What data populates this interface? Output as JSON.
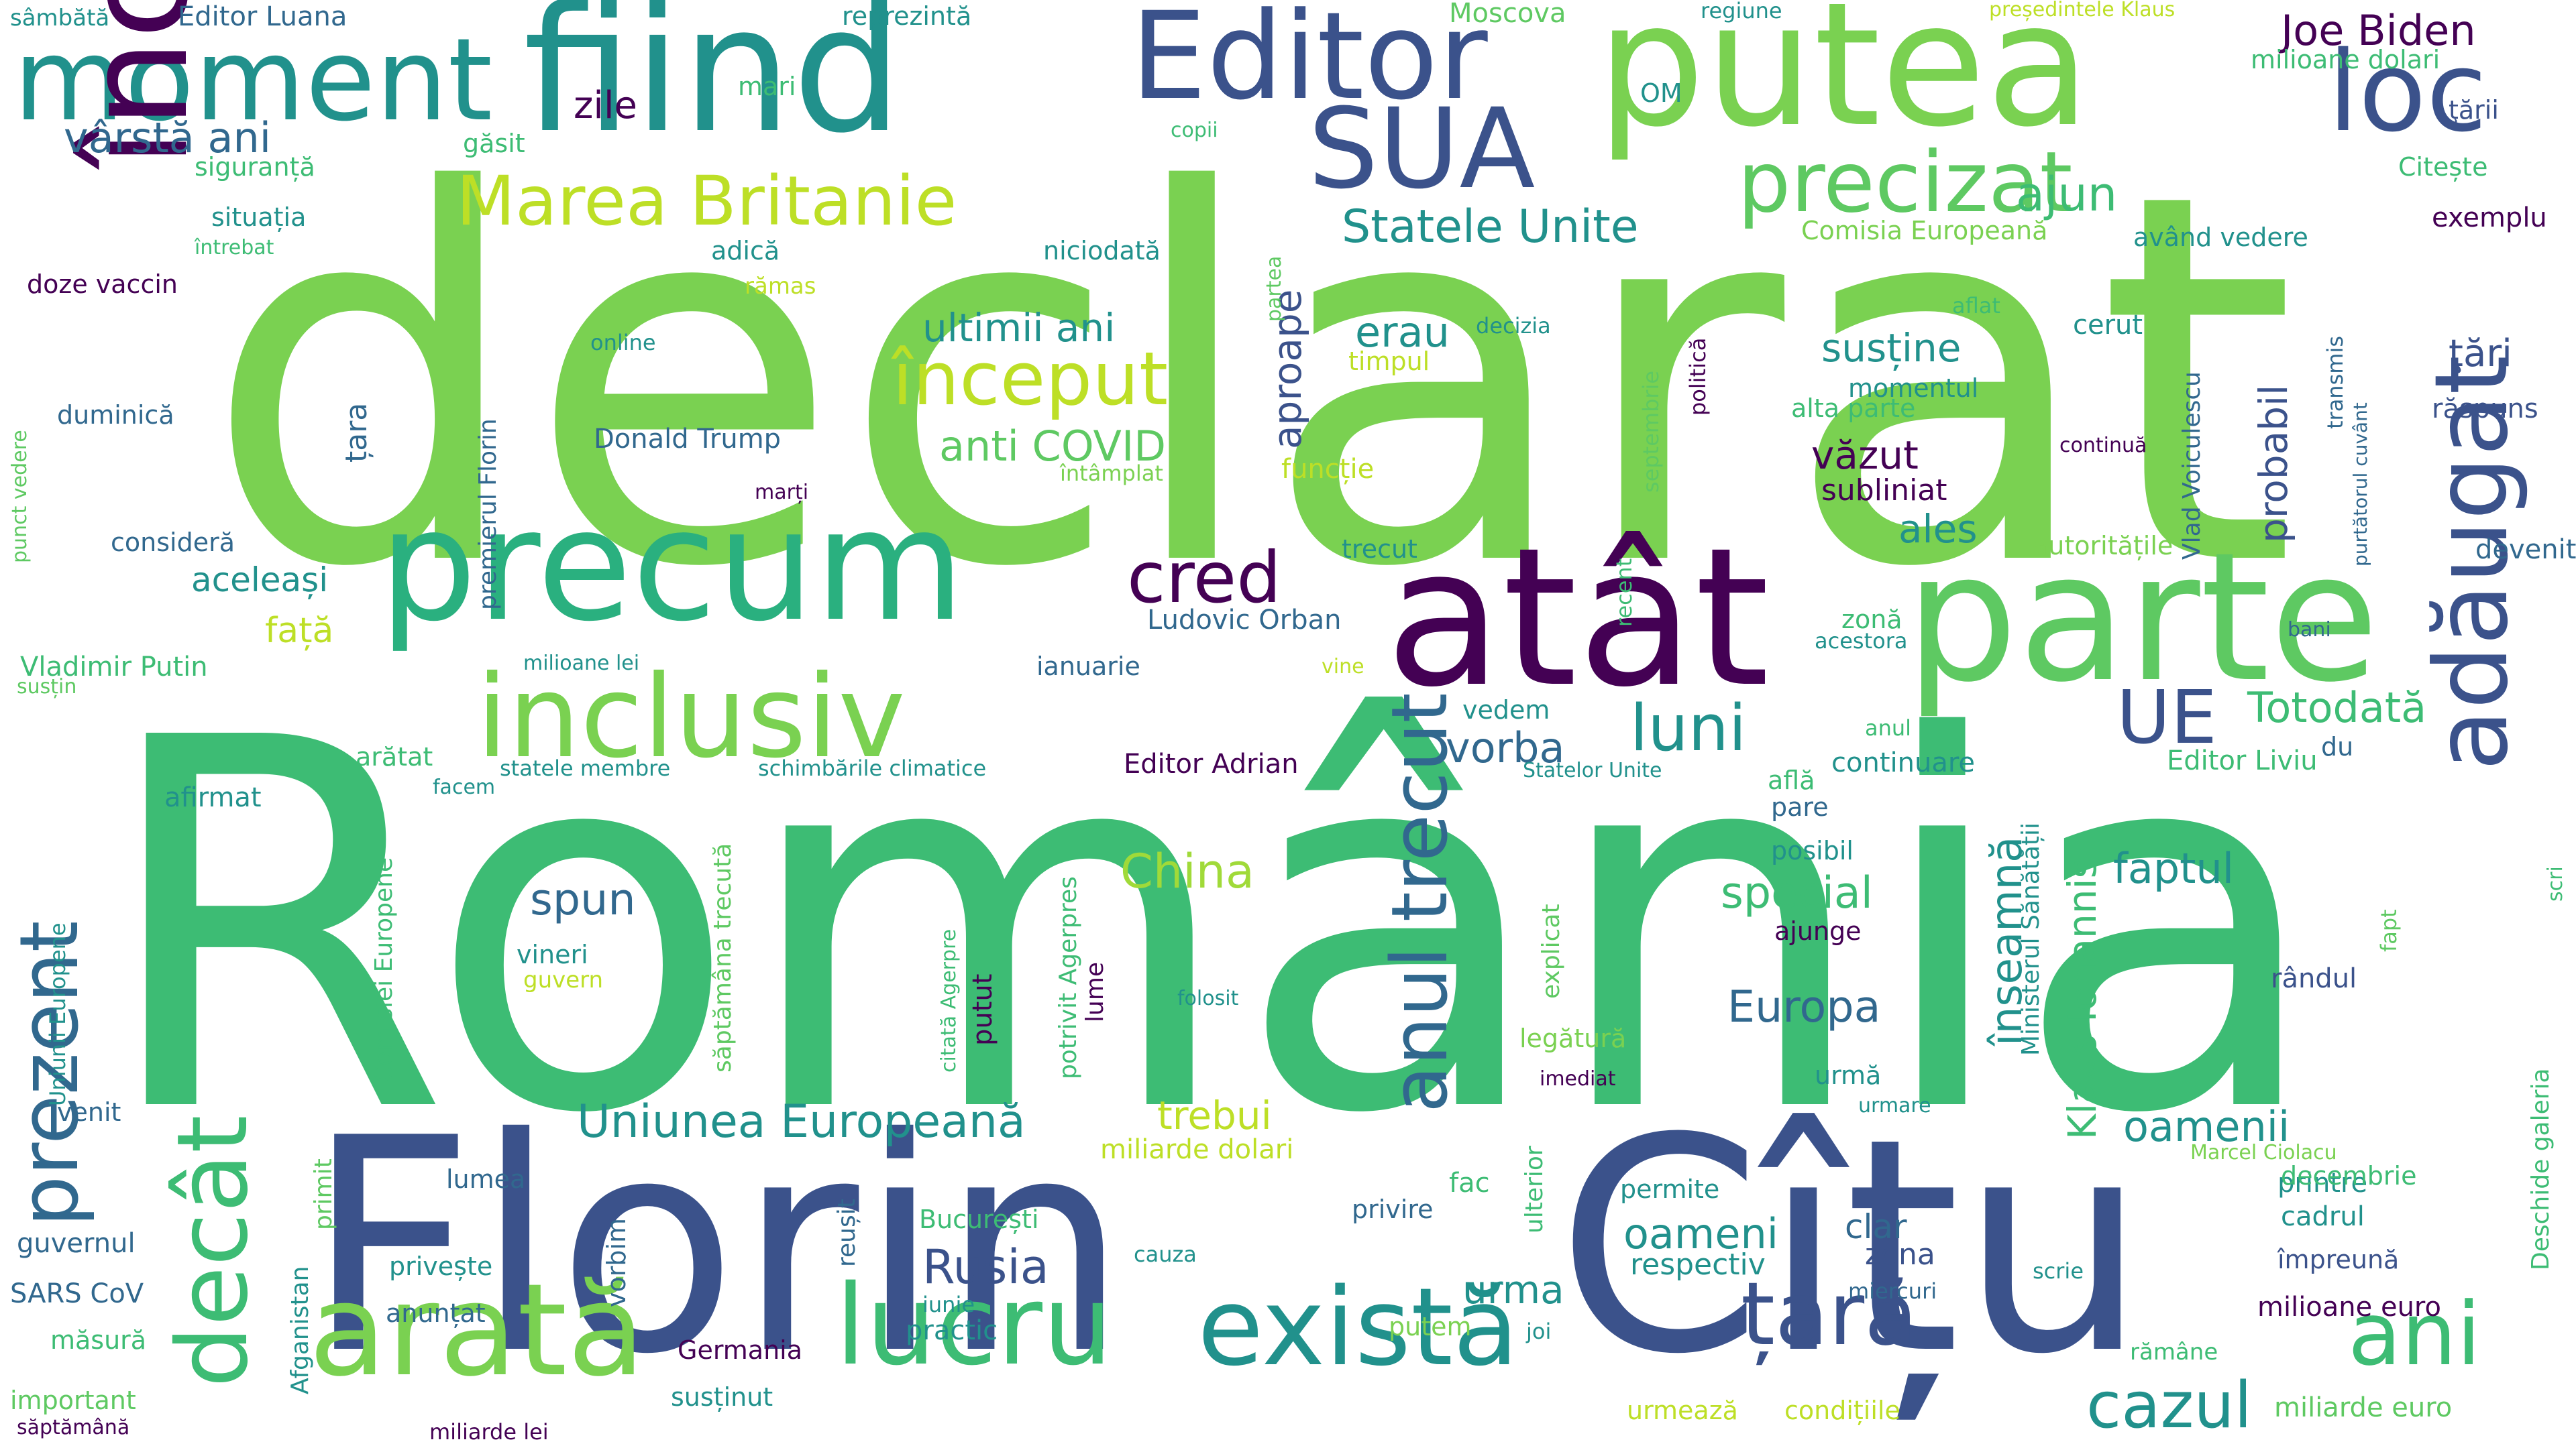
{
  "palette": {
    "background": "#ffffff",
    "dark_purple": "#440154",
    "indigo": "#3b528b",
    "teal": "#21918c",
    "green": "#3dbc74",
    "light_green": "#7ad151",
    "yellow": "#bddf26"
  },
  "words": [
    {
      "text": "declarat",
      "color": "#7ad151"
    },
    {
      "text": "România",
      "color": "#3dbc74"
    },
    {
      "text": "Florin",
      "color": "#3b528b"
    },
    {
      "text": "Cîțu",
      "color": "#3b528b"
    },
    {
      "text": "parte",
      "color": "#5ec962"
    },
    {
      "text": "atât",
      "color": "#440154"
    },
    {
      "text": "putea",
      "color": "#7ad151"
    },
    {
      "text": "fiind",
      "color": "#21918c"
    },
    {
      "text": "Editor",
      "color": "#3b528b"
    },
    {
      "text": "moment",
      "color": "#21918c"
    },
    {
      "text": "încă",
      "color": "#440154"
    },
    {
      "text": "precum",
      "color": "#2ab07f"
    },
    {
      "text": "inclusiv",
      "color": "#7ad151"
    },
    {
      "text": "loc",
      "color": "#3b528b"
    },
    {
      "text": "SUA",
      "color": "#3b528b"
    },
    {
      "text": "precizat",
      "color": "#5ec962"
    },
    {
      "text": "adăugat",
      "color": "#3b528b"
    },
    {
      "text": "arată",
      "color": "#7ad151"
    },
    {
      "text": "există",
      "color": "#21918c"
    },
    {
      "text": "lucru",
      "color": "#3dbc74"
    },
    {
      "text": "țară",
      "color": "#3b528b"
    },
    {
      "text": "ani",
      "color": "#3dbc74"
    },
    {
      "text": "decât",
      "color": "#3dbc74"
    },
    {
      "text": "prezent",
      "color": "#31688e"
    },
    {
      "text": "Marea Britanie",
      "color": "#bddf26"
    },
    {
      "text": "cred",
      "color": "#440154"
    },
    {
      "text": "anul trecut",
      "color": "#31688e"
    },
    {
      "text": "început",
      "color": "#bddf26"
    },
    {
      "text": "UE",
      "color": "#3b528b"
    },
    {
      "text": "luni",
      "color": "#21918c"
    },
    {
      "text": "cazul",
      "color": "#21918c"
    },
    {
      "text": "Uniunea Europeană",
      "color": "#21918c"
    },
    {
      "text": "Statele Unite",
      "color": "#21918c"
    },
    {
      "text": "vârstă ani",
      "color": "#31688e"
    },
    {
      "text": "Joe Biden",
      "color": "#440154"
    },
    {
      "text": "Totodată",
      "color": "#3dbc74"
    },
    {
      "text": "ajun",
      "color": "#3dbc74"
    },
    {
      "text": "spun",
      "color": "#31688e"
    },
    {
      "text": "China",
      "color": "#a0da39"
    },
    {
      "text": "Rusia",
      "color": "#3b528b"
    },
    {
      "text": "Europa",
      "color": "#31688e"
    },
    {
      "text": "special",
      "color": "#3dbc74"
    },
    {
      "text": "înseamnă",
      "color": "#21918c"
    },
    {
      "text": "oamenii",
      "color": "#21918c"
    },
    {
      "text": "oameni",
      "color": "#21918c"
    },
    {
      "text": "faptul",
      "color": "#21918c"
    },
    {
      "text": "anti COVID",
      "color": "#5ec962"
    },
    {
      "text": "erau",
      "color": "#21918c"
    },
    {
      "text": "vorba",
      "color": "#31688e"
    },
    {
      "text": "ultimii ani",
      "color": "#21918c"
    },
    {
      "text": "susține",
      "color": "#21918c"
    },
    {
      "text": "aproape",
      "color": "#3b528b"
    },
    {
      "text": "probabil",
      "color": "#3b528b"
    },
    {
      "text": "ales",
      "color": "#21918c"
    },
    {
      "text": "văzut",
      "color": "#440154"
    },
    {
      "text": "subliniat",
      "color": "#440154"
    },
    {
      "text": "Klaus Iohannis",
      "color": "#3dbc74"
    },
    {
      "text": "trebui",
      "color": "#bddf26"
    },
    {
      "text": "urma",
      "color": "#21918c"
    },
    {
      "text": "clar",
      "color": "#31688e"
    },
    {
      "text": "zona",
      "color": "#3b528b"
    },
    {
      "text": "respectiv",
      "color": "#21918c"
    },
    {
      "text": "aceleași",
      "color": "#21918c"
    },
    {
      "text": "față",
      "color": "#bddf26"
    },
    {
      "text": "ţări",
      "color": "#3b528b"
    },
    {
      "text": "exemplu",
      "color": "#440154"
    },
    {
      "text": "devenit",
      "color": "#31688e"
    },
    {
      "text": "cerut",
      "color": "#21918c"
    },
    {
      "text": "răspuns",
      "color": "#3b528b"
    },
    {
      "text": "Ludovic Orban",
      "color": "#31688e"
    },
    {
      "text": "Editor Adrian",
      "color": "#440154"
    },
    {
      "text": "Editor Liviu",
      "color": "#3dbc74"
    },
    {
      "text": "continuare",
      "color": "#21918c"
    },
    {
      "text": "Donald Trump",
      "color": "#31688e"
    },
    {
      "text": "zile",
      "color": "#440154"
    },
    {
      "text": "sâmbătă",
      "color": "#21918c"
    },
    {
      "text": "Editor Luana",
      "color": "#31688e"
    },
    {
      "text": "reprezintă",
      "color": "#21918c"
    },
    {
      "text": "Moscova",
      "color": "#5ec962"
    },
    {
      "text": "regiune",
      "color": "#21918c"
    },
    {
      "text": "președintele Klaus",
      "color": "#bddf26"
    },
    {
      "text": "milioane dolari",
      "color": "#3dbc74"
    },
    {
      "text": "ţării",
      "color": "#3b528b"
    },
    {
      "text": "Citește",
      "color": "#3dbc74"
    },
    {
      "text": "Comisia Europeană",
      "color": "#7ad151"
    },
    {
      "text": "având vedere",
      "color": "#21918c"
    },
    {
      "text": "siguranță",
      "color": "#3dbc74"
    },
    {
      "text": "situația",
      "color": "#21918c"
    },
    {
      "text": "întrebat",
      "color": "#3dbc74"
    },
    {
      "text": "doze vaccin",
      "color": "#440154"
    },
    {
      "text": "duminică",
      "color": "#31688e"
    },
    {
      "text": "găsit",
      "color": "#3dbc74"
    },
    {
      "text": "mari",
      "color": "#3dbc74"
    },
    {
      "text": "OM",
      "color": "#21918c"
    },
    {
      "text": "copii",
      "color": "#3dbc74"
    },
    {
      "text": "adică",
      "color": "#21918c"
    },
    {
      "text": "niciodată",
      "color": "#21918c"
    },
    {
      "text": "rămas",
      "color": "#bddf26"
    },
    {
      "text": "online",
      "color": "#21918c"
    },
    {
      "text": "timpul",
      "color": "#bddf26"
    },
    {
      "text": "decizia",
      "color": "#21918c"
    },
    {
      "text": "aflat",
      "color": "#3dbc74"
    },
    {
      "text": "alta parte",
      "color": "#3dbc74"
    },
    {
      "text": "momentul",
      "color": "#21918c"
    },
    {
      "text": "continuă",
      "color": "#440154"
    },
    {
      "text": "funcție",
      "color": "#bddf26"
    },
    {
      "text": "întâmplat",
      "color": "#7ad151"
    },
    {
      "text": "marți",
      "color": "#440154"
    },
    {
      "text": "consideră",
      "color": "#31688e"
    },
    {
      "text": "trecut",
      "color": "#21918c"
    },
    {
      "text": "autoritățile",
      "color": "#7ad151"
    },
    {
      "text": "Vladimir Putin",
      "color": "#3dbc74"
    },
    {
      "text": "milioane lei",
      "color": "#21918c"
    },
    {
      "text": "susțin",
      "color": "#5ec962"
    },
    {
      "text": "ianuarie",
      "color": "#31688e"
    },
    {
      "text": "vine",
      "color": "#bddf26"
    },
    {
      "text": "acestora",
      "color": "#21918c"
    },
    {
      "text": "zonă",
      "color": "#3dbc74"
    },
    {
      "text": "bani",
      "color": "#31688e"
    },
    {
      "text": "anul",
      "color": "#3dbc74"
    },
    {
      "text": "vedem",
      "color": "#21918c"
    },
    {
      "text": "arătat",
      "color": "#3dbc74"
    },
    {
      "text": "statele membre",
      "color": "#21918c"
    },
    {
      "text": "schimbările climatice",
      "color": "#21918c"
    },
    {
      "text": "Statelor Unite",
      "color": "#21918c"
    },
    {
      "text": "află",
      "color": "#3dbc74"
    },
    {
      "text": "pare",
      "color": "#31688e"
    },
    {
      "text": "du",
      "color": "#31688e"
    },
    {
      "text": "afirmat",
      "color": "#21918c"
    },
    {
      "text": "facem",
      "color": "#21918c"
    },
    {
      "text": "posibil",
      "color": "#21918c"
    },
    {
      "text": "ajunge",
      "color": "#440154"
    },
    {
      "text": "vineri",
      "color": "#21918c"
    },
    {
      "text": "guvern",
      "color": "#bddf26"
    },
    {
      "text": "rândul",
      "color": "#3b528b"
    },
    {
      "text": "legătură",
      "color": "#7ad151"
    },
    {
      "text": "imediat",
      "color": "#440154"
    },
    {
      "text": "folosit",
      "color": "#21918c"
    },
    {
      "text": "urmare",
      "color": "#21918c"
    },
    {
      "text": "urmă",
      "color": "#21918c"
    },
    {
      "text": "cadrul",
      "color": "#21918c"
    },
    {
      "text": "printre",
      "color": "#21918c"
    },
    {
      "text": "decembrie",
      "color": "#3dbc74"
    },
    {
      "text": "Marcel Ciolacu",
      "color": "#7ad151"
    },
    {
      "text": "împreună",
      "color": "#3b528b"
    },
    {
      "text": "milioane euro",
      "color": "#440154"
    },
    {
      "text": "rămâne",
      "color": "#3dbc74"
    },
    {
      "text": "miliarde euro",
      "color": "#5ec962"
    },
    {
      "text": "condițiile",
      "color": "#bddf26"
    },
    {
      "text": "urmează",
      "color": "#bddf26"
    },
    {
      "text": "venit",
      "color": "#31688e"
    },
    {
      "text": "guvernul",
      "color": "#31688e"
    },
    {
      "text": "SARS CoV",
      "color": "#31688e"
    },
    {
      "text": "măsură",
      "color": "#3dbc74"
    },
    {
      "text": "important",
      "color": "#5ec962"
    },
    {
      "text": "săptămână",
      "color": "#440154"
    },
    {
      "text": "miliarde lei",
      "color": "#440154"
    },
    {
      "text": "susținut",
      "color": "#21918c"
    },
    {
      "text": "Germania",
      "color": "#440154"
    },
    {
      "text": "practic",
      "color": "#21918c"
    },
    {
      "text": "iunie",
      "color": "#21918c"
    },
    {
      "text": "putem",
      "color": "#7ad151"
    },
    {
      "text": "joi",
      "color": "#21918c"
    },
    {
      "text": "miercuri",
      "color": "#31688e"
    },
    {
      "text": "scrie",
      "color": "#21918c"
    },
    {
      "text": "cauza",
      "color": "#21918c"
    },
    {
      "text": "privire",
      "color": "#31688e"
    },
    {
      "text": "permite",
      "color": "#21918c"
    },
    {
      "text": "fac",
      "color": "#3dbc74"
    },
    {
      "text": "lumea",
      "color": "#31688e"
    },
    {
      "text": "vorbim",
      "color": "#31688e"
    },
    {
      "text": "privește",
      "color": "#21918c"
    },
    {
      "text": "anunțat",
      "color": "#31688e"
    },
    {
      "text": "București",
      "color": "#3dbc74"
    },
    {
      "text": "miliarde dolari",
      "color": "#bddf26"
    },
    {
      "text": "fapt",
      "color": "#5ec962"
    },
    {
      "text": "premierul Florin",
      "color": "#31688e"
    },
    {
      "text": "țara",
      "color": "#31688e"
    },
    {
      "text": "punct vedere",
      "color": "#5ec962"
    },
    {
      "text": "Uniunii Europene",
      "color": "#21918c"
    },
    {
      "text": "Comisiei Europene",
      "color": "#3dbc74"
    },
    {
      "text": "săptămâna trecută",
      "color": "#5ec962"
    },
    {
      "text": "reușit",
      "color": "#31688e"
    },
    {
      "text": "citată Agerpre",
      "color": "#3dbc74"
    },
    {
      "text": "putut",
      "color": "#440154"
    },
    {
      "text": "potrivit Agerpres",
      "color": "#3dbc74"
    },
    {
      "text": "lume",
      "color": "#440154"
    },
    {
      "text": "Ministerul Sănătății",
      "color": "#21918c"
    },
    {
      "text": "Vlad Voiculescu",
      "color": "#31688e"
    },
    {
      "text": "transmis",
      "color": "#31688e"
    },
    {
      "text": "purtătorul cuvânt",
      "color": "#31688e"
    },
    {
      "text": "politică",
      "color": "#440154"
    },
    {
      "text": "septembrie",
      "color": "#5ec962"
    },
    {
      "text": "recent",
      "color": "#3dbc74"
    },
    {
      "text": "partea",
      "color": "#5ec962"
    },
    {
      "text": "explicat",
      "color": "#5ec962"
    },
    {
      "text": "ulterior",
      "color": "#3dbc74"
    },
    {
      "text": "Afganistan",
      "color": "#21918c"
    },
    {
      "text": "primit",
      "color": "#5ec962"
    },
    {
      "text": "Deschide galeria",
      "color": "#3dbc74"
    },
    {
      "text": "scri",
      "color": "#3dbc74"
    }
  ]
}
